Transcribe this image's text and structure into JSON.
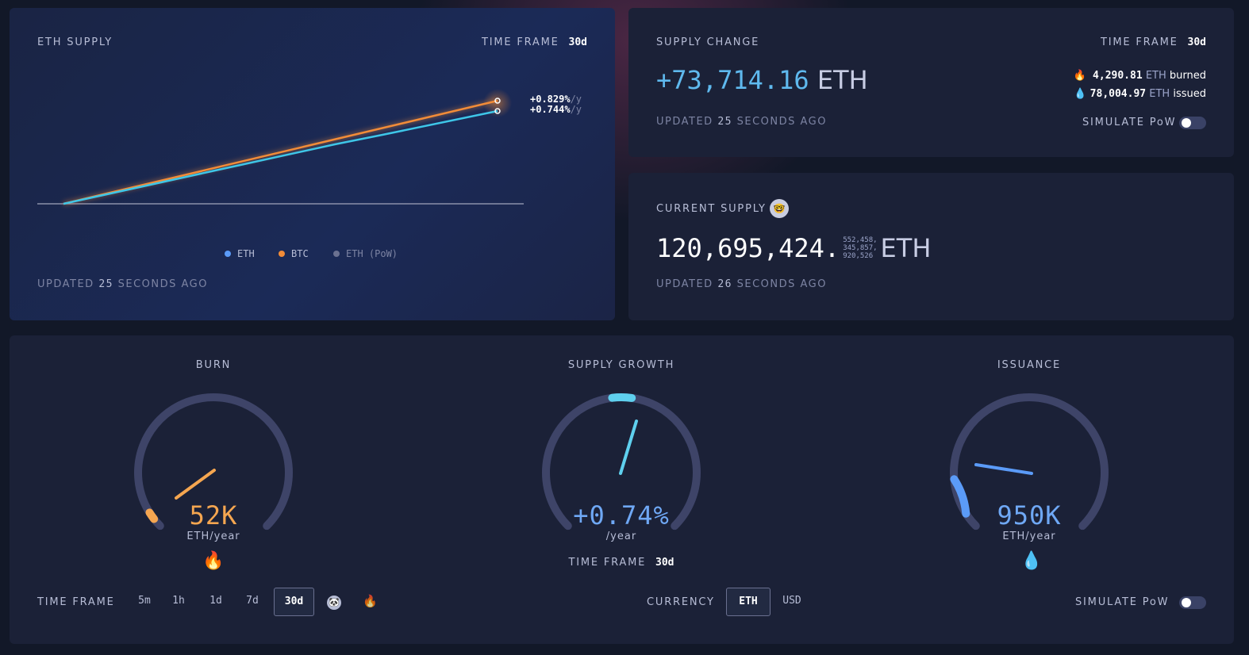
{
  "eth_supply": {
    "title": "ETH SUPPLY",
    "time_frame_label": "TIME FRAME",
    "time_frame_value": "30d",
    "btc_rate": "+0.829%",
    "eth_rate": "+0.744%",
    "rate_unit": "/y",
    "legend": [
      {
        "label": "ETH",
        "color": "#5b9bf8"
      },
      {
        "label": "BTC",
        "color": "#f28c38"
      },
      {
        "label": "ETH (PoW)",
        "color": "#6b7190"
      }
    ],
    "updated_prefix": "UPDATED",
    "updated_value": "25",
    "updated_suffix": "SECONDS AGO"
  },
  "supply_change": {
    "title": "SUPPLY CHANGE",
    "time_frame_label": "TIME FRAME",
    "time_frame_value": "30d",
    "value": "+73,714.16",
    "unit": "ETH",
    "burned_value": "4,290.81",
    "burned_unit": "ETH",
    "burned_label": "burned",
    "issued_value": "78,004.97",
    "issued_unit": "ETH",
    "issued_label": "issued",
    "simulate_label": "SIMULATE PoW",
    "simulate_on": false,
    "updated_prefix": "UPDATED",
    "updated_value": "25",
    "updated_suffix": "SECONDS AGO"
  },
  "current_supply": {
    "title": "CURRENT SUPPLY",
    "icon": "nerd-face-icon",
    "integer": "120,695,424.",
    "decimals_1": "552,458,",
    "decimals_2": "345,857,",
    "decimals_3": "920,526",
    "unit": "ETH",
    "updated_prefix": "UPDATED",
    "updated_value": "26",
    "updated_suffix": "SECONDS AGO"
  },
  "gauges": {
    "burn": {
      "title": "BURN",
      "value": "52K",
      "unit": "ETH/year",
      "color": "#f5a650",
      "icon": "fire-icon"
    },
    "supply_growth": {
      "title": "SUPPLY GROWTH",
      "value": "+0.74%",
      "unit": "/year",
      "color": "#6fa8f5",
      "time_frame_label": "TIME FRAME",
      "time_frame_value": "30d"
    },
    "issuance": {
      "title": "ISSUANCE",
      "value": "950K",
      "unit": "ETH/year",
      "color": "#6fa8f5",
      "icon": "droplet-icon"
    }
  },
  "controls": {
    "time_frame_label": "TIME FRAME",
    "time_frames": [
      "5m",
      "1h",
      "1d",
      "7d",
      "30d"
    ],
    "selected_time_frame": "30d",
    "currency_label": "CURRENCY",
    "currencies": [
      "ETH",
      "USD"
    ],
    "selected_currency": "ETH",
    "simulate_label": "SIMULATE PoW",
    "simulate_on": false
  }
}
